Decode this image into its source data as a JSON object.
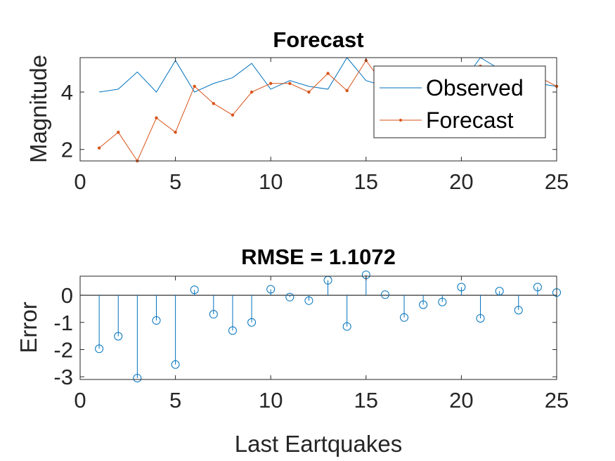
{
  "chart_data": [
    {
      "type": "line",
      "title": "Forecast",
      "xlabel": "",
      "ylabel": "Magnitude",
      "xlim": [
        0,
        25
      ],
      "ylim": [
        1.6,
        5.2
      ],
      "xticks": [
        0,
        5,
        10,
        15,
        20,
        25
      ],
      "yticks": [
        2,
        4
      ],
      "grid": false,
      "legend_position": "top-right",
      "x": [
        1,
        2,
        3,
        4,
        5,
        6,
        7,
        8,
        9,
        10,
        11,
        12,
        13,
        14,
        15,
        16,
        17,
        18,
        19,
        20,
        21,
        22,
        23,
        24,
        25
      ],
      "series": [
        {
          "name": "Observed",
          "color": "#0072BD",
          "marker": "none",
          "values": [
            4.0,
            4.1,
            4.7,
            4.0,
            5.1,
            4.0,
            4.3,
            4.5,
            5.0,
            4.1,
            4.4,
            4.2,
            4.1,
            5.2,
            4.4,
            4.2,
            4.9,
            4.9,
            4.5,
            4.3,
            5.2,
            4.8,
            4.6,
            4.3,
            4.2
          ]
        },
        {
          "name": "Forecast",
          "color": "#D95319",
          "marker": "dot",
          "values": [
            2.05,
            2.6,
            1.6,
            3.1,
            2.6,
            4.2,
            3.6,
            3.2,
            4.0,
            4.3,
            4.3,
            4.0,
            4.65,
            4.05,
            5.1,
            4.2,
            4.6,
            4.7,
            4.7,
            4.5,
            4.9,
            4.8,
            4.6,
            4.55,
            4.2
          ]
        }
      ]
    },
    {
      "type": "stem",
      "title": "RMSE = 1.1072",
      "xlabel": "Last Eartquakes",
      "ylabel": "Error",
      "xlim": [
        0,
        25
      ],
      "ylim": [
        -3.1,
        0.7
      ],
      "xticks": [
        0,
        5,
        10,
        15,
        20,
        25
      ],
      "yticks": [
        0,
        -1,
        -2,
        -3
      ],
      "grid": false,
      "color": "#0072BD",
      "x": [
        1,
        2,
        3,
        4,
        5,
        6,
        7,
        8,
        9,
        10,
        11,
        12,
        13,
        14,
        15,
        16,
        17,
        18,
        19,
        20,
        21,
        22,
        23,
        24,
        25
      ],
      "values": [
        -1.97,
        -1.51,
        -3.05,
        -0.93,
        -2.55,
        0.2,
        -0.7,
        -1.3,
        -1.0,
        0.22,
        -0.07,
        -0.2,
        0.55,
        -1.15,
        0.75,
        0.02,
        -0.82,
        -0.35,
        -0.25,
        0.3,
        -0.85,
        0.15,
        -0.55,
        0.3,
        0.1
      ]
    }
  ]
}
